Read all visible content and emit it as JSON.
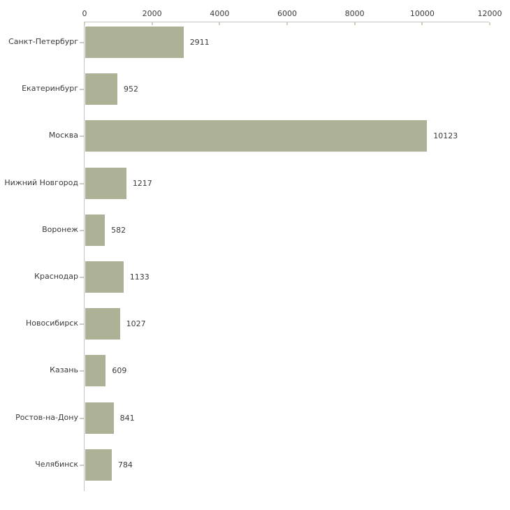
{
  "chart_data": {
    "type": "bar",
    "orientation": "horizontal",
    "title": "",
    "xlabel": "",
    "ylabel": "",
    "categories": [
      "Санкт-Петербург",
      "Екатеринбург",
      "Москва",
      "Нижний Новгород",
      "Воронеж",
      "Краснодар",
      "Новосибирск",
      "Казань",
      "Ростов-на-Дону",
      "Челябинск"
    ],
    "values": [
      2911,
      952,
      10123,
      1217,
      582,
      1133,
      1027,
      609,
      841,
      784
    ],
    "value_labels": [
      "2911",
      "952",
      "10123",
      "1217",
      "582",
      "1133",
      "1027",
      "609",
      "841",
      "784"
    ],
    "xlim": [
      0,
      12000
    ],
    "x_tick_values": [
      0,
      2000,
      4000,
      6000,
      8000,
      10000,
      12000
    ],
    "x_tick_labels": [
      "0",
      "2000",
      "4000",
      "6000",
      "8000",
      "10000",
      "12000"
    ],
    "grid": false,
    "legend_position": "none",
    "axis_position": "top-left",
    "colors": {
      "background": "#ffffff",
      "bar": "#adb296",
      "axis": "#c3c3c3",
      "x_tick": "#cfd2ba",
      "y_tick": "#c9cbbd",
      "text": "#3a3a3a"
    }
  }
}
